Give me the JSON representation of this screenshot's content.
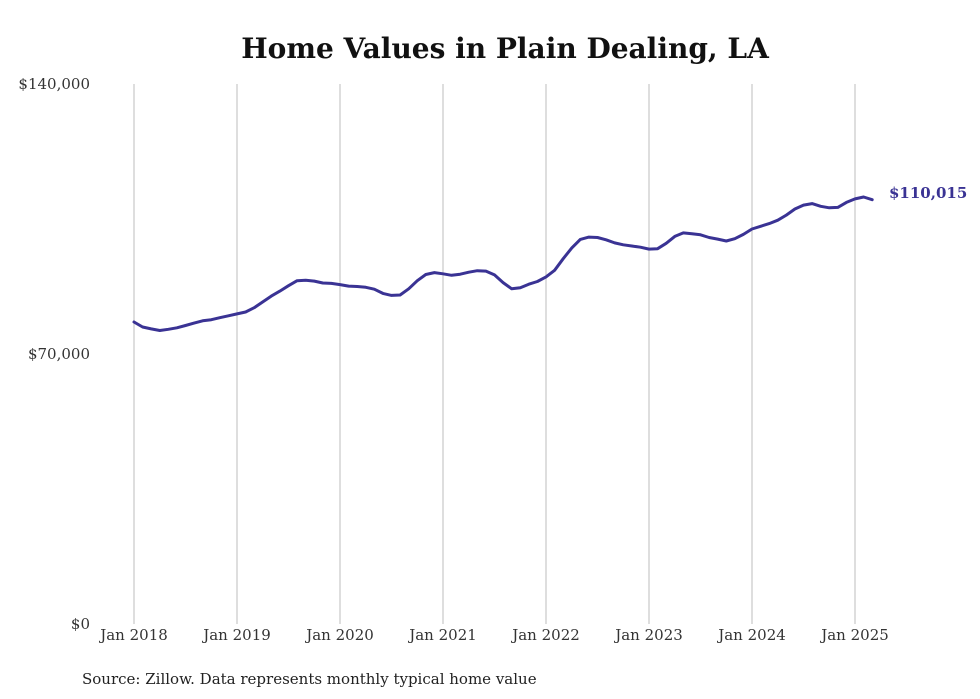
{
  "chart_data": {
    "type": "line",
    "title": "Home Values in Plain Dealing, LA",
    "xlabel": "",
    "ylabel": "",
    "source": "Source: Zillow. Data represents monthly typical home value",
    "ylim": [
      0,
      140000
    ],
    "y_ticks": [
      {
        "value": 0,
        "label": "$0"
      },
      {
        "value": 70000,
        "label": "$70,000"
      },
      {
        "value": 140000,
        "label": "$140,000"
      }
    ],
    "x_ticks": [
      {
        "date": "2018-01",
        "label": "Jan 2018"
      },
      {
        "date": "2019-01",
        "label": "Jan 2019"
      },
      {
        "date": "2020-01",
        "label": "Jan 2020"
      },
      {
        "date": "2021-01",
        "label": "Jan 2021"
      },
      {
        "date": "2022-01",
        "label": "Jan 2022"
      },
      {
        "date": "2023-01",
        "label": "Jan 2023"
      },
      {
        "date": "2024-01",
        "label": "Jan 2024"
      },
      {
        "date": "2025-01",
        "label": "Jan 2025"
      }
    ],
    "grid": "vertical",
    "series_color": "#3a3394",
    "end_label": "$110,015",
    "series": [
      {
        "x": [
          "2018-01",
          "2018-02",
          "2018-03",
          "2018-04",
          "2018-05",
          "2018-06",
          "2018-07",
          "2018-08",
          "2018-09",
          "2018-10",
          "2018-11",
          "2018-12",
          "2019-01",
          "2019-02",
          "2019-03",
          "2019-04",
          "2019-05",
          "2019-06",
          "2019-07",
          "2019-08",
          "2019-09",
          "2019-10",
          "2019-11",
          "2019-12",
          "2020-01",
          "2020-02",
          "2020-03",
          "2020-04",
          "2020-05",
          "2020-06",
          "2020-07",
          "2020-08",
          "2020-09",
          "2020-10",
          "2020-11",
          "2020-12",
          "2021-01",
          "2021-02",
          "2021-03",
          "2021-04",
          "2021-05",
          "2021-06",
          "2021-07",
          "2021-08",
          "2021-09",
          "2021-10",
          "2021-11",
          "2021-12",
          "2022-01",
          "2022-02",
          "2022-03",
          "2022-04",
          "2022-05",
          "2022-06",
          "2022-07",
          "2022-08",
          "2022-09",
          "2022-10",
          "2022-11",
          "2022-12",
          "2023-01",
          "2023-02",
          "2023-03",
          "2023-04",
          "2023-05",
          "2023-06",
          "2023-07",
          "2023-08",
          "2023-09",
          "2023-10",
          "2023-11",
          "2023-12",
          "2024-01",
          "2024-02",
          "2024-03",
          "2024-04",
          "2024-05",
          "2024-06",
          "2024-07",
          "2024-08",
          "2024-09",
          "2024-10",
          "2024-11",
          "2024-12",
          "2025-01",
          "2025-02",
          "2025-03"
        ],
        "values": [
          78300,
          77000,
          76500,
          76100,
          76400,
          76800,
          77400,
          78000,
          78600,
          78900,
          79400,
          79900,
          80400,
          80900,
          82000,
          83500,
          85000,
          86300,
          87700,
          89000,
          89100,
          88900,
          88400,
          88300,
          88000,
          87600,
          87500,
          87300,
          86800,
          85700,
          85200,
          85300,
          86900,
          89000,
          90600,
          91100,
          90800,
          90400,
          90700,
          91200,
          91600,
          91500,
          90500,
          88500,
          86900,
          87200,
          88100,
          88800,
          90000,
          91700,
          94700,
          97500,
          99700,
          100300,
          100200,
          99600,
          98800,
          98300,
          98000,
          97700,
          97200,
          97300,
          98700,
          100500,
          101400,
          101200,
          100900,
          100200,
          99800,
          99300,
          99900,
          101000,
          102400,
          103100,
          103800,
          104700,
          106000,
          107600,
          108600,
          109000,
          108300,
          107900,
          108000,
          109300,
          110200,
          110700,
          110015
        ]
      }
    ]
  }
}
